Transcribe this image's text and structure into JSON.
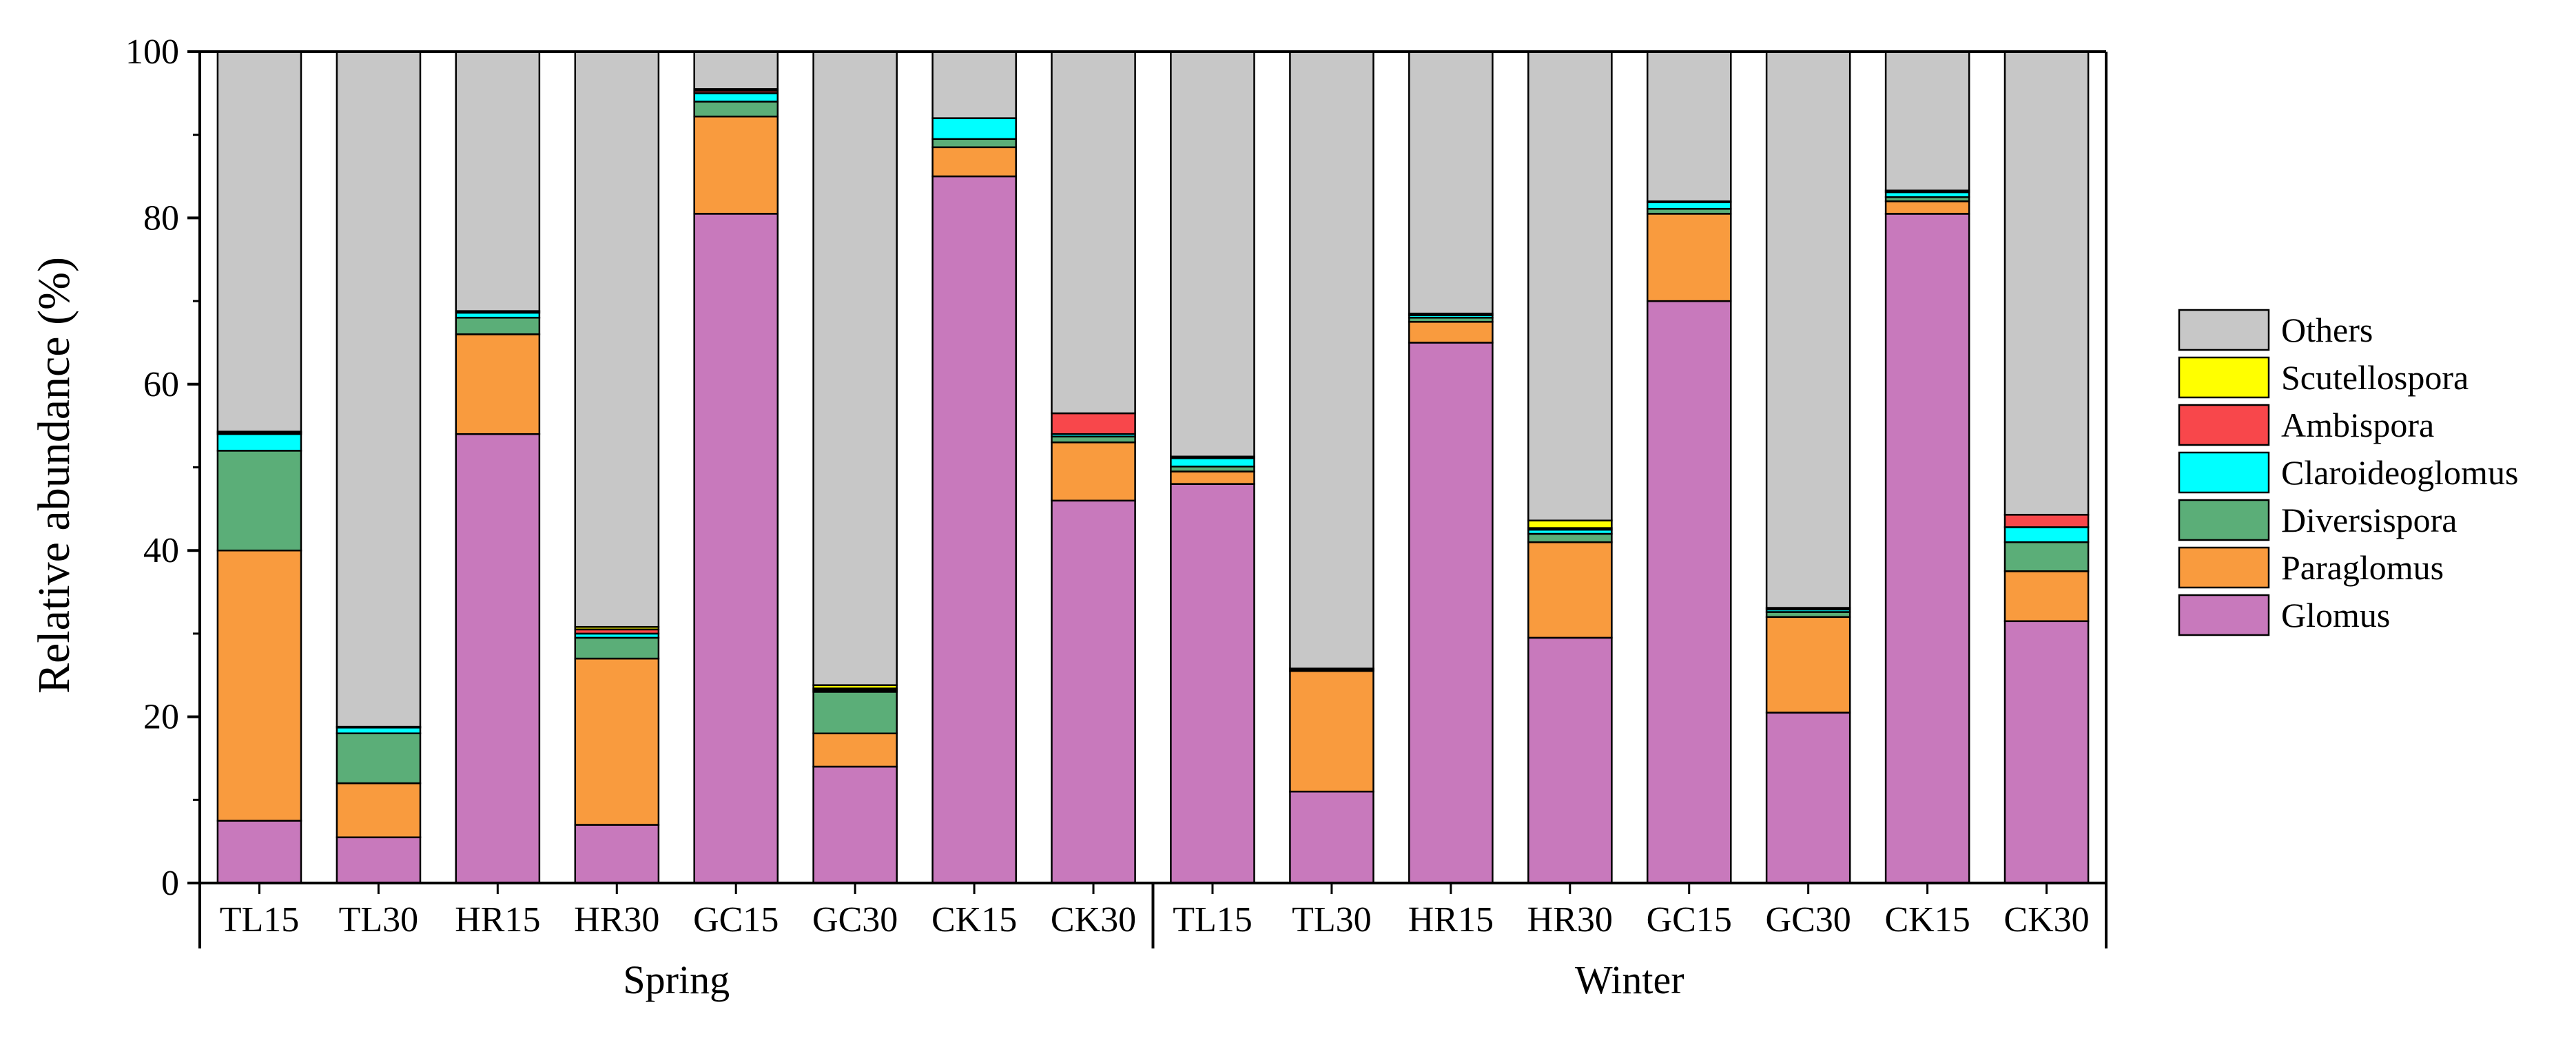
{
  "chart_data": {
    "type": "stacked-bar",
    "title": "",
    "xlabel": "",
    "ylabel": "Relative abundance (%)",
    "ylim": [
      0,
      100
    ],
    "yticks": [
      0,
      20,
      40,
      60,
      80,
      100
    ],
    "grid": false,
    "legend_position": "right",
    "categories": [
      "TL15",
      "TL30",
      "HR15",
      "HR30",
      "GC15",
      "GC30",
      "CK15",
      "CK30",
      "TL15",
      "TL30",
      "HR15",
      "HR30",
      "GC15",
      "GC30",
      "CK15",
      "CK30"
    ],
    "groups": [
      {
        "label": "Spring",
        "start": 0,
        "end": 7
      },
      {
        "label": "Winter",
        "start": 8,
        "end": 15
      }
    ],
    "series": [
      {
        "name": "Glomus",
        "color": "#C879BC",
        "values": [
          7.5,
          5.5,
          54,
          7,
          80.5,
          14,
          85,
          46,
          48,
          11,
          65,
          29.5,
          70,
          20.5,
          80.5,
          31.5
        ]
      },
      {
        "name": "Paraglomus",
        "color": "#F99B3E",
        "values": [
          32.5,
          6.5,
          12,
          20,
          11.7,
          4,
          3.5,
          7,
          1.5,
          14.5,
          2.5,
          11.5,
          10.5,
          11.5,
          1.5,
          6
        ]
      },
      {
        "name": "Diversispora",
        "color": "#5BAE78",
        "values": [
          12,
          6,
          2,
          2.5,
          1.8,
          5,
          1,
          0.7,
          0.6,
          0.2,
          0.5,
          1,
          0.6,
          0.6,
          0.5,
          3.5
        ]
      },
      {
        "name": "Claroideoglomus",
        "color": "#00FFFF",
        "values": [
          2,
          0.7,
          0.6,
          0.5,
          1,
          0.2,
          2.5,
          0.3,
          1,
          0,
          0.3,
          0.5,
          0.8,
          0.3,
          0.6,
          1.8
        ]
      },
      {
        "name": "Ambispora",
        "color": "#F8474B",
        "values": [
          0.2,
          0.1,
          0.2,
          0.5,
          0.3,
          0.2,
          0,
          2.5,
          0.2,
          0.1,
          0.2,
          0.2,
          0.1,
          0.2,
          0.2,
          1.5
        ]
      },
      {
        "name": "Scutellospora",
        "color": "#FFFF00",
        "values": [
          0.1,
          0,
          0,
          0.3,
          0.2,
          0.4,
          0,
          0,
          0,
          0,
          0,
          0.9,
          0,
          0,
          0,
          0
        ]
      },
      {
        "name": "Others",
        "color": "#C7C7C7",
        "values": [
          45.7,
          81.2,
          31.2,
          69.2,
          4.5,
          76.2,
          8,
          43.5,
          48.7,
          74.2,
          31.5,
          56.4,
          18,
          66.9,
          16.7,
          55.7
        ]
      }
    ],
    "legend_order": [
      "Others",
      "Scutellospora",
      "Ambispora",
      "Claroideoglomus",
      "Diversispora",
      "Paraglomus",
      "Glomus"
    ]
  }
}
